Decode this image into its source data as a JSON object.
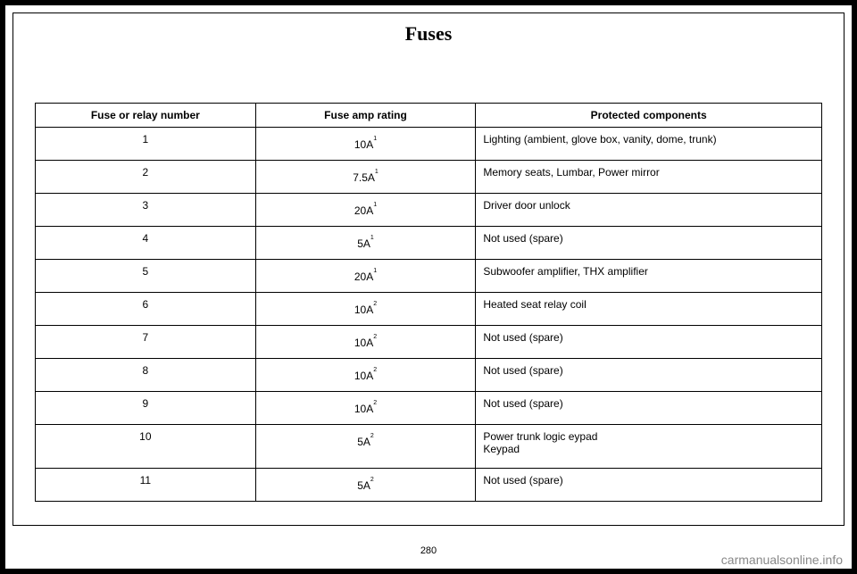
{
  "title": "Fuses",
  "pageNumber": "280",
  "watermark": "carmanualsonline.info",
  "table": {
    "headers": {
      "col1": "Fuse or relay number",
      "col2": "Fuse amp rating",
      "col3": "Protected components"
    },
    "rows": [
      {
        "num": "1",
        "rating": "10A",
        "sup": "1",
        "comp": "Lighting (ambient, glove box, vanity, dome, trunk)"
      },
      {
        "num": "2",
        "rating": "7.5A",
        "sup": "1",
        "comp": "Memory seats, Lumbar, Power mirror"
      },
      {
        "num": "3",
        "rating": "20A",
        "sup": "1",
        "comp": "Driver door unlock"
      },
      {
        "num": "4",
        "rating": "5A",
        "sup": "1",
        "comp": "Not used (spare)"
      },
      {
        "num": "5",
        "rating": "20A",
        "sup": "1",
        "comp": "Subwoofer amplifier, THX amplifier"
      },
      {
        "num": "6",
        "rating": "10A",
        "sup": "2",
        "comp": "Heated seat relay coil"
      },
      {
        "num": "7",
        "rating": "10A",
        "sup": "2",
        "comp": "Not used (spare)"
      },
      {
        "num": "8",
        "rating": "10A",
        "sup": "2",
        "comp": "Not used (spare)"
      },
      {
        "num": "9",
        "rating": "10A",
        "sup": "2",
        "comp": "Not used (spare)"
      },
      {
        "num": "10",
        "rating": "5A",
        "sup": "2",
        "comp": "Power trunk logic eypad\nKeypad"
      },
      {
        "num": "11",
        "rating": "5A",
        "sup": "2",
        "comp": "Not used (spare)"
      }
    ]
  }
}
